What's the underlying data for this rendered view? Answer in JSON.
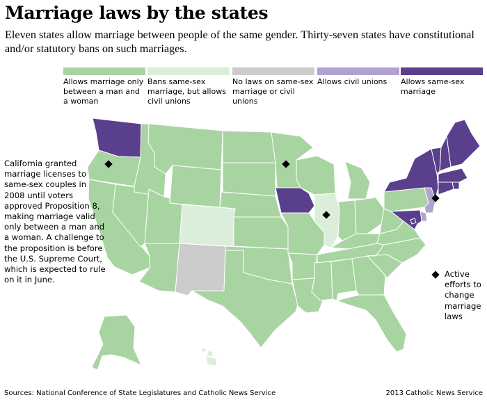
{
  "title": "Marriage laws by the states",
  "subtitle": "Eleven states allow marriage between people of the same gender. Thirty-seven states have constitutional and/or statutory bans on such marriages.",
  "colors": {
    "man_woman": "#a8d4a1",
    "ban_civil": "#daeeda",
    "no_laws": "#cccccc",
    "civil": "#b1a3cf",
    "same_sex": "#5a3f8c",
    "border": "#ffffff"
  },
  "legend": [
    {
      "key": "man_woman",
      "label": "Allows marriage only between a man and a woman"
    },
    {
      "key": "ban_civil",
      "label": "Bans same-sex marriage, but allows civil unions"
    },
    {
      "key": "no_laws",
      "label": "No laws on same-sex marriage or civil unions"
    },
    {
      "key": "civil",
      "label": "Allows civil unions"
    },
    {
      "key": "same_sex",
      "label": "Allows same-sex marriage"
    }
  ],
  "california_note": "California granted marriage licenses to same-sex couples in 2008 until voters approved Proposition 8, making marriage valid only between a man and a woman. A challenge to the proposition is before the U.S. Supreme Court, which is expected to rule on it in June.",
  "active_efforts_label": "Active efforts to change marriage laws",
  "active_efforts_states": [
    "Oregon",
    "Minnesota",
    "Illinois",
    "New Jersey"
  ],
  "state_categories": {
    "same_sex": [
      "Washington",
      "Iowa",
      "Maine",
      "New Hampshire",
      "Vermont",
      "Massachusetts",
      "Connecticut",
      "New York",
      "Maryland",
      "Rhode Island",
      "District of Columbia"
    ],
    "civil": [
      "New Jersey",
      "Delaware"
    ],
    "ban_civil": [
      "Colorado",
      "Illinois",
      "Hawaii"
    ],
    "no_laws": [
      "New Mexico"
    ],
    "man_woman": [
      "Oregon",
      "California",
      "Nevada",
      "Idaho",
      "Montana",
      "Wyoming",
      "Utah",
      "Arizona",
      "North Dakota",
      "South Dakota",
      "Nebraska",
      "Kansas",
      "Oklahoma",
      "Texas",
      "Minnesota",
      "Missouri",
      "Arkansas",
      "Louisiana",
      "Wisconsin",
      "Michigan",
      "Indiana",
      "Ohio",
      "Kentucky",
      "Tennessee",
      "Mississippi",
      "Alabama",
      "Georgia",
      "Florida",
      "South Carolina",
      "North Carolina",
      "Virginia",
      "West Virginia",
      "Pennsylvania",
      "Alaska"
    ]
  },
  "sources": "Sources: National Conference of State Legislatures and Catholic News Service",
  "credit": "2013 Catholic News Service"
}
